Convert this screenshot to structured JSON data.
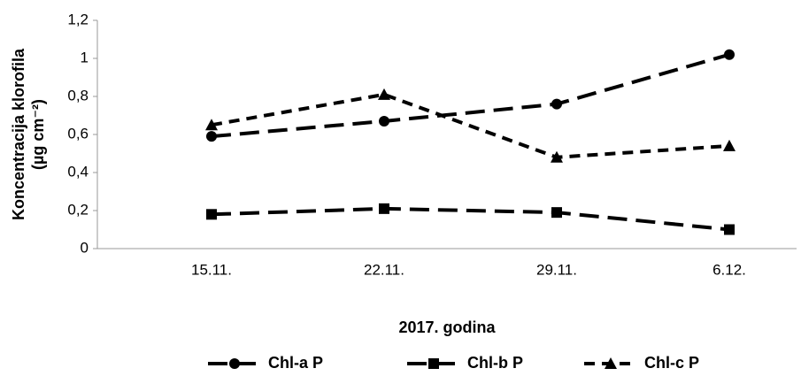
{
  "chart_data": {
    "type": "line",
    "x_label": "2017. godina",
    "y_label": [
      "Koncentracija klorofila",
      "(µg cm⁻²)"
    ],
    "categories": [
      "15.11.",
      "22.11.",
      "29.11.",
      "6.12."
    ],
    "series": [
      {
        "name": "Chl-a P",
        "color": "#000000",
        "marker": "circle",
        "dash": "long",
        "values": [
          0.59,
          0.67,
          0.76,
          1.02
        ]
      },
      {
        "name": "Chl-b P",
        "color": "#000000",
        "marker": "square",
        "dash": "long",
        "values": [
          0.18,
          0.21,
          0.19,
          0.1
        ]
      },
      {
        "name": "Chl-c P",
        "color": "#000000",
        "marker": "triangle",
        "dash": "short",
        "values": [
          0.65,
          0.81,
          0.48,
          0.54
        ]
      }
    ],
    "ylim": [
      0,
      1.2
    ],
    "yticks": [
      0,
      {
        "value": 0.2,
        "label": "0,2"
      },
      {
        "value": 0.4,
        "label": "0,4"
      },
      {
        "value": 0.6,
        "label": "0,6"
      },
      {
        "value": 0.8,
        "label": "0,8"
      },
      1,
      {
        "value": 1.2,
        "label": "1,2"
      }
    ],
    "grid": false,
    "legend": "bottom"
  }
}
